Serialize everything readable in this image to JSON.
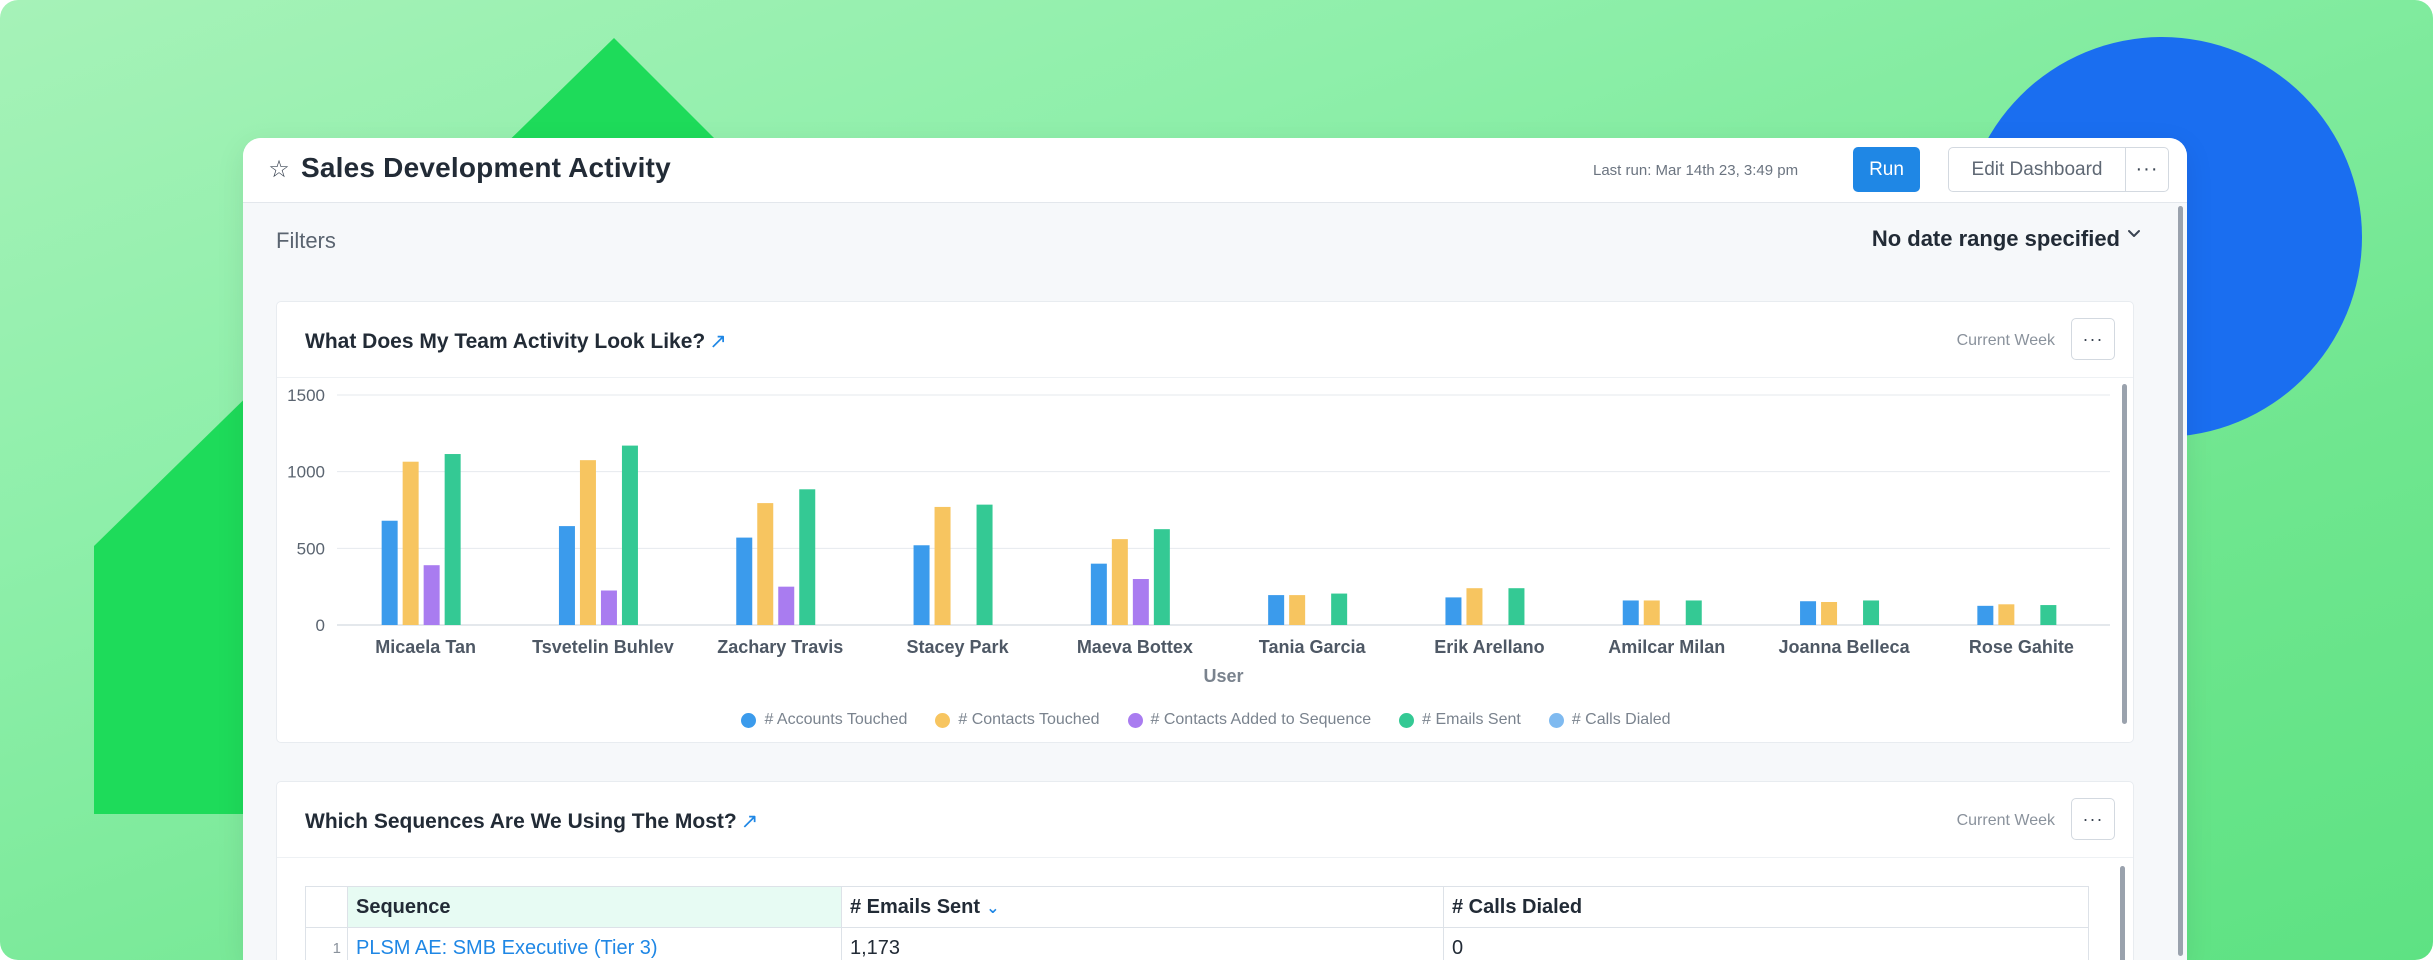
{
  "header": {
    "title": "Sales Development Activity",
    "last_run": "Last run: Mar 14th 23, 3:49 pm",
    "run_label": "Run",
    "edit_label": "Edit Dashboard",
    "more_label": "···"
  },
  "filters": {
    "label": "Filters",
    "date_range": "No date range specified"
  },
  "cards": {
    "activity": {
      "title": "What Does My Team Activity Look Like?",
      "range": "Current Week",
      "more_label": "···"
    },
    "sequences": {
      "title": "Which Sequences Are We Using The Most?",
      "range": "Current Week",
      "more_label": "···"
    }
  },
  "colors": {
    "accent": "#1f87e5",
    "accounts": "#3b9bec",
    "contacts": "#f7c560",
    "added": "#a97cf0",
    "emails": "#34c994",
    "calls": "#7fbaf0"
  },
  "chart_data": {
    "type": "bar",
    "xlabel": "User",
    "ylabel": "",
    "ylim": [
      0,
      1500
    ],
    "yticks": [
      0,
      500,
      1000,
      1500
    ],
    "grid": true,
    "legend": "bottom",
    "categories": [
      "Micaela Tan",
      "Tsvetelin Buhlev",
      "Zachary Travis",
      "Stacey Park",
      "Maeva Bottex",
      "Tania Garcia",
      "Erik Arellano",
      "Amilcar Milan",
      "Joanna Belleca",
      "Rose Gahite"
    ],
    "series": [
      {
        "name": "# Accounts Touched",
        "values": [
          680,
          645,
          570,
          520,
          400,
          195,
          180,
          160,
          155,
          125
        ]
      },
      {
        "name": "# Contacts Touched",
        "values": [
          1065,
          1075,
          795,
          770,
          560,
          195,
          240,
          160,
          150,
          135
        ]
      },
      {
        "name": "# Contacts Added to Sequence",
        "values": [
          390,
          225,
          250,
          0,
          300,
          0,
          0,
          0,
          0,
          0
        ]
      },
      {
        "name": "# Emails Sent",
        "values": [
          1115,
          1170,
          885,
          785,
          625,
          205,
          240,
          160,
          160,
          130
        ]
      },
      {
        "name": "# Calls Dialed",
        "values": [
          0,
          0,
          0,
          0,
          0,
          0,
          0,
          0,
          0,
          0
        ]
      }
    ]
  },
  "table": {
    "headers": [
      "Sequence",
      "# Emails Sent",
      "# Calls Dialed"
    ],
    "rows": [
      {
        "index": "1",
        "sequence": "PLSM AE: SMB Executive (Tier 3)",
        "emails": "1,173",
        "calls": "0"
      }
    ]
  }
}
